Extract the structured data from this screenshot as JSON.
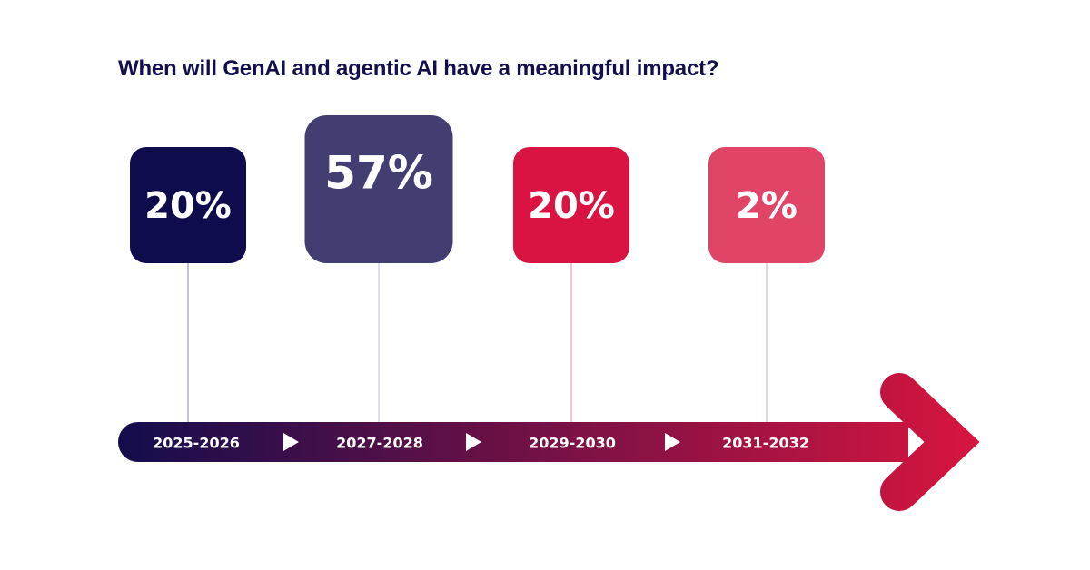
{
  "chart_data": {
    "type": "bar",
    "title": "When will GenAI and agentic AI have a meaningful impact?",
    "categories": [
      "2025-2026",
      "2027-2028",
      "2029-2030",
      "2031-2032"
    ],
    "values": [
      20,
      57,
      20,
      2
    ],
    "labels": [
      "20%",
      "57%",
      "20%",
      "2%"
    ],
    "unit": "%",
    "colors": [
      "#0f0c4e",
      "#423e72",
      "#d91442",
      "#e04467"
    ],
    "stem_colors": [
      "#8a86b0",
      "#c4c2d8",
      "#ef8aa2",
      "#d9a6c0"
    ],
    "arrow_gradient": [
      "#130d4c",
      "#d6153f"
    ]
  }
}
